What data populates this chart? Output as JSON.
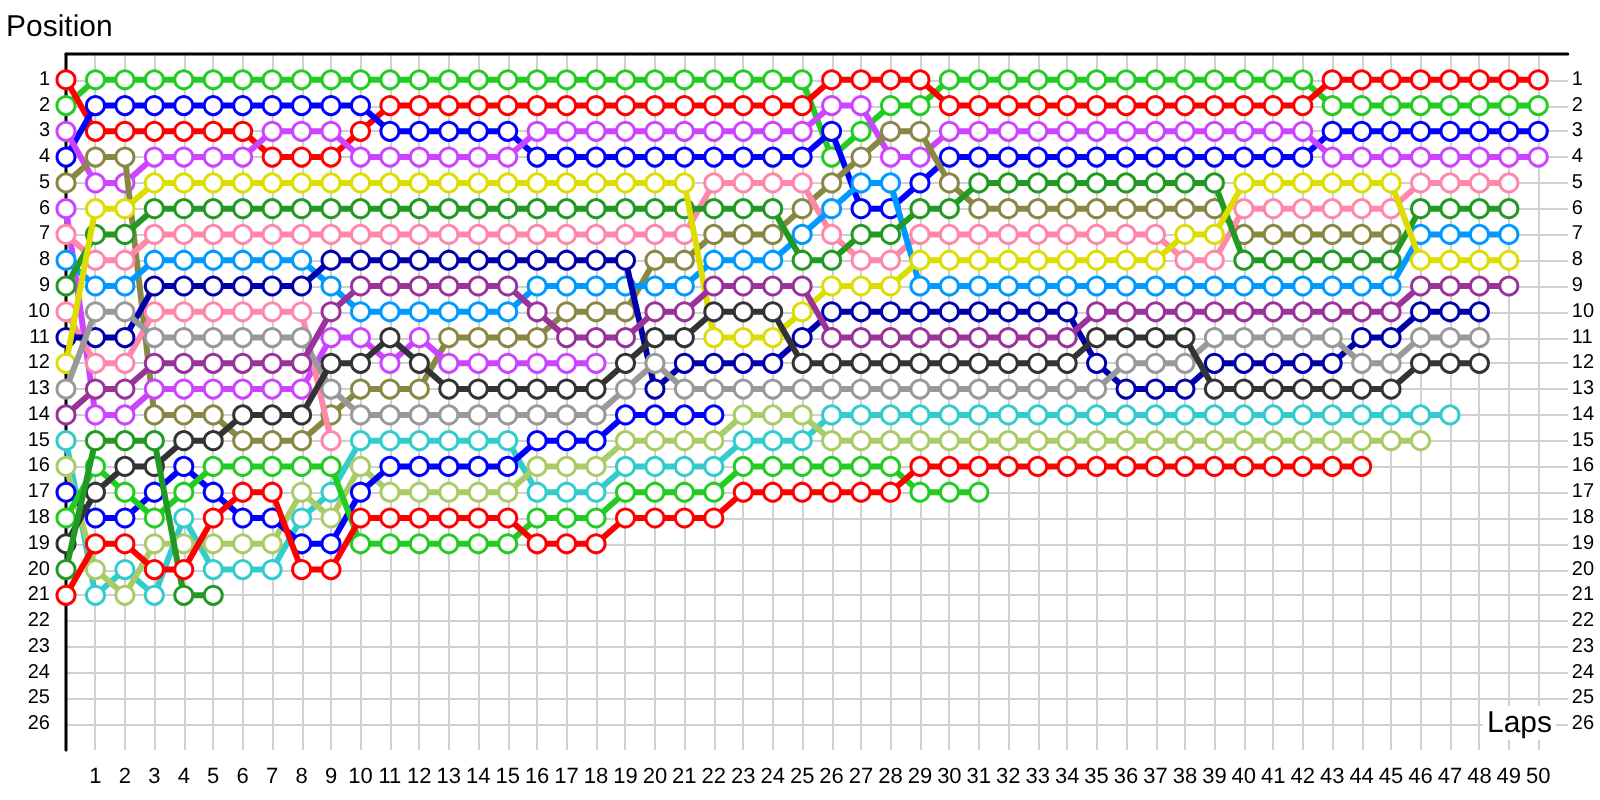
{
  "chart_data": {
    "type": "line",
    "xlabel": "Laps",
    "ylabel": "Position",
    "x": [
      0,
      1,
      2,
      3,
      4,
      5,
      6,
      7,
      8,
      9,
      10,
      11,
      12,
      13,
      14,
      15,
      16,
      17,
      18,
      19,
      20,
      21,
      22,
      23,
      24,
      25,
      26,
      27,
      28,
      29,
      30,
      31,
      32,
      33,
      34,
      35,
      36,
      37,
      38,
      39,
      40,
      41,
      42,
      43,
      44,
      45,
      46,
      47,
      48,
      49,
      50
    ],
    "xlim": [
      0,
      51
    ],
    "xticks": [
      1,
      2,
      3,
      4,
      5,
      6,
      7,
      8,
      9,
      10,
      11,
      12,
      13,
      14,
      15,
      16,
      17,
      18,
      19,
      20,
      21,
      22,
      23,
      24,
      25,
      26,
      27,
      28,
      29,
      30,
      31,
      32,
      33,
      34,
      35,
      36,
      37,
      38,
      39,
      40,
      41,
      42,
      43,
      44,
      45,
      46,
      47,
      48,
      49,
      50
    ],
    "ylim": [
      27,
      0
    ],
    "yticks": [
      1,
      2,
      3,
      4,
      5,
      6,
      7,
      8,
      9,
      10,
      11,
      12,
      13,
      14,
      15,
      16,
      17,
      18,
      19,
      20,
      21,
      22,
      23,
      24,
      25,
      26
    ],
    "y2lim": [
      27,
      0
    ],
    "y2ticks": [
      1,
      2,
      3,
      4,
      5,
      6,
      7,
      8,
      9,
      10,
      11,
      12,
      13,
      14,
      15,
      16,
      17,
      18,
      19,
      20,
      21,
      22,
      23,
      24,
      25,
      26
    ],
    "grid": true,
    "marker": "circle",
    "line_style": "solid",
    "series": [
      {
        "color": "#22cc22",
        "values": [
          2,
          1,
          1,
          1,
          1,
          1,
          1,
          1,
          1,
          1,
          1,
          1,
          1,
          1,
          1,
          1,
          1,
          1,
          1,
          1,
          1,
          1,
          1,
          1,
          1,
          1,
          4,
          3,
          2,
          2,
          1,
          1,
          1,
          1,
          1,
          1,
          1,
          1,
          1,
          1,
          1,
          1,
          1,
          2,
          2,
          2,
          2,
          2,
          2,
          2,
          2
        ]
      },
      {
        "color": "#ff0000",
        "values": [
          1,
          3,
          3,
          3,
          3,
          3,
          3,
          4,
          4,
          4,
          3,
          2,
          2,
          2,
          2,
          2,
          2,
          2,
          2,
          2,
          2,
          2,
          2,
          2,
          2,
          2,
          1,
          1,
          1,
          1,
          2,
          2,
          2,
          2,
          2,
          2,
          2,
          2,
          2,
          2,
          2,
          2,
          2,
          1,
          1,
          1,
          1,
          1,
          1,
          1,
          1
        ]
      },
      {
        "color": "#0000ff",
        "values": [
          4,
          2,
          2,
          2,
          2,
          2,
          2,
          2,
          2,
          2,
          2,
          3,
          3,
          3,
          3,
          3,
          4,
          4,
          4,
          4,
          4,
          4,
          4,
          4,
          4,
          4,
          3,
          6,
          6,
          5,
          4,
          4,
          4,
          4,
          4,
          4,
          4,
          4,
          4,
          4,
          4,
          4,
          4,
          3,
          3,
          3,
          3,
          3,
          3,
          3,
          3
        ]
      },
      {
        "color": "#cc44ff",
        "values": [
          3,
          5,
          5,
          4,
          4,
          4,
          4,
          3,
          3,
          3,
          4,
          4,
          4,
          4,
          4,
          4,
          3,
          3,
          3,
          3,
          3,
          3,
          3,
          3,
          3,
          3,
          2,
          2,
          4,
          4,
          3,
          3,
          3,
          3,
          3,
          3,
          3,
          3,
          3,
          3,
          3,
          3,
          3,
          4,
          4,
          4,
          4,
          4,
          4,
          4,
          4
        ]
      },
      {
        "color": "#888844",
        "values": [
          5,
          4,
          4,
          14,
          14,
          14,
          15,
          15,
          15,
          14,
          13,
          13,
          13,
          11,
          11,
          11,
          11,
          10,
          10,
          10,
          8,
          8,
          7,
          7,
          7,
          6,
          5,
          4,
          3,
          3,
          5,
          6,
          6,
          6,
          6,
          6,
          6,
          6,
          6,
          6,
          7,
          7,
          7,
          7,
          7,
          7,
          null,
          null,
          null,
          null,
          null
        ]
      },
      {
        "color": "#cc44ff",
        "values": [
          6,
          14,
          14,
          13,
          13,
          13,
          13,
          13,
          13,
          11,
          11,
          12,
          11,
          12,
          12,
          12,
          12,
          12,
          12,
          null,
          null,
          null,
          null,
          null,
          null,
          null,
          null,
          null,
          null,
          null,
          null,
          null,
          null,
          null,
          null,
          null,
          null,
          null,
          null,
          null,
          null,
          null,
          null,
          null,
          null,
          null,
          null,
          null,
          null,
          null,
          null
        ]
      },
      {
        "color": "#ff88aa",
        "values": [
          7,
          8,
          8,
          7,
          7,
          7,
          7,
          7,
          7,
          7,
          7,
          7,
          7,
          7,
          7,
          7,
          7,
          7,
          7,
          7,
          7,
          7,
          5,
          5,
          5,
          5,
          7,
          8,
          8,
          7,
          7,
          7,
          7,
          7,
          7,
          7,
          7,
          7,
          8,
          8,
          6,
          6,
          6,
          6,
          6,
          6,
          5,
          5,
          5,
          5,
          null
        ]
      },
      {
        "color": "#0099ff",
        "values": [
          8,
          9,
          9,
          8,
          8,
          8,
          8,
          8,
          8,
          9,
          10,
          10,
          10,
          10,
          10,
          10,
          9,
          9,
          9,
          9,
          9,
          9,
          8,
          8,
          8,
          7,
          6,
          5,
          5,
          9,
          9,
          9,
          9,
          9,
          9,
          9,
          9,
          9,
          9,
          9,
          9,
          9,
          9,
          9,
          9,
          9,
          7,
          7,
          7,
          7,
          null
        ]
      },
      {
        "color": "#229922",
        "values": [
          9,
          7,
          7,
          6,
          6,
          6,
          6,
          6,
          6,
          6,
          6,
          6,
          6,
          6,
          6,
          6,
          6,
          6,
          6,
          6,
          6,
          6,
          6,
          6,
          6,
          8,
          8,
          7,
          7,
          6,
          6,
          5,
          5,
          5,
          5,
          5,
          5,
          5,
          5,
          5,
          8,
          8,
          8,
          8,
          8,
          8,
          6,
          6,
          6,
          6,
          null
        ]
      },
      {
        "color": "#ff88aa",
        "values": [
          10,
          12,
          12,
          10,
          10,
          10,
          10,
          10,
          10,
          15,
          null,
          null,
          null,
          null,
          null,
          null,
          null,
          null,
          null,
          null,
          null,
          null,
          null,
          null,
          null,
          null,
          null,
          null,
          null,
          null,
          null,
          null,
          null,
          null,
          null,
          null,
          null,
          null,
          null,
          null,
          null,
          null,
          null,
          null,
          null,
          null,
          null,
          null,
          null,
          null,
          null
        ]
      },
      {
        "color": "#0000aa",
        "values": [
          11,
          11,
          11,
          9,
          9,
          9,
          9,
          9,
          9,
          8,
          8,
          8,
          8,
          8,
          8,
          8,
          8,
          8,
          8,
          8,
          13,
          12,
          12,
          12,
          12,
          11,
          10,
          10,
          10,
          10,
          10,
          10,
          10,
          10,
          10,
          12,
          13,
          13,
          13,
          12,
          12,
          12,
          12,
          12,
          11,
          11,
          10,
          10,
          10,
          null,
          null
        ]
      },
      {
        "color": "#dddd00",
        "values": [
          12,
          6,
          6,
          5,
          5,
          5,
          5,
          5,
          5,
          5,
          5,
          5,
          5,
          5,
          5,
          5,
          5,
          5,
          5,
          5,
          5,
          5,
          11,
          11,
          11,
          10,
          9,
          9,
          9,
          8,
          8,
          8,
          8,
          8,
          8,
          8,
          8,
          8,
          7,
          7,
          5,
          5,
          5,
          5,
          5,
          5,
          8,
          8,
          8,
          8,
          null
        ]
      },
      {
        "color": "#999999",
        "values": [
          13,
          10,
          10,
          11,
          11,
          11,
          11,
          11,
          11,
          13,
          14,
          14,
          14,
          14,
          14,
          14,
          14,
          14,
          14,
          13,
          12,
          13,
          13,
          13,
          13,
          13,
          13,
          13,
          13,
          13,
          13,
          13,
          13,
          13,
          13,
          13,
          12,
          12,
          12,
          11,
          11,
          11,
          11,
          11,
          12,
          12,
          11,
          11,
          11,
          null,
          null
        ]
      },
      {
        "color": "#993399",
        "values": [
          14,
          13,
          13,
          12,
          12,
          12,
          12,
          12,
          12,
          10,
          9,
          9,
          9,
          9,
          9,
          9,
          10,
          11,
          11,
          11,
          10,
          10,
          9,
          9,
          9,
          9,
          11,
          11,
          11,
          11,
          11,
          11,
          11,
          11,
          11,
          10,
          10,
          10,
          10,
          10,
          10,
          10,
          10,
          10,
          10,
          10,
          9,
          9,
          9,
          9,
          null
        ]
      },
      {
        "color": "#33cccc",
        "values": [
          15,
          21,
          20,
          21,
          18,
          20,
          20,
          20,
          18,
          17,
          15,
          15,
          15,
          15,
          15,
          15,
          17,
          17,
          17,
          16,
          16,
          16,
          16,
          15,
          15,
          15,
          14,
          14,
          14,
          14,
          14,
          14,
          14,
          14,
          14,
          14,
          14,
          14,
          14,
          14,
          14,
          14,
          14,
          14,
          14,
          14,
          14,
          14,
          null,
          null,
          null
        ]
      },
      {
        "color": "#aacc66",
        "values": [
          16,
          20,
          21,
          19,
          19,
          19,
          19,
          19,
          17,
          18,
          16,
          17,
          17,
          17,
          17,
          17,
          16,
          16,
          16,
          15,
          15,
          15,
          15,
          14,
          14,
          14,
          15,
          15,
          15,
          15,
          15,
          15,
          15,
          15,
          15,
          15,
          15,
          15,
          15,
          15,
          15,
          15,
          15,
          15,
          15,
          15,
          15,
          null,
          null,
          null,
          null
        ]
      },
      {
        "color": "#0000ff",
        "values": [
          17,
          18,
          18,
          17,
          16,
          17,
          18,
          18,
          19,
          19,
          17,
          16,
          16,
          16,
          16,
          16,
          15,
          15,
          15,
          14,
          14,
          14,
          14,
          null,
          null,
          null,
          null,
          null,
          null,
          null,
          null,
          null,
          null,
          null,
          null,
          null,
          null,
          null,
          null,
          null,
          null,
          null,
          null,
          null,
          null,
          null,
          null,
          null,
          null,
          null,
          null
        ]
      },
      {
        "color": "#22cc22",
        "values": [
          18,
          16,
          17,
          18,
          17,
          16,
          16,
          16,
          16,
          16,
          19,
          19,
          19,
          19,
          19,
          19,
          18,
          18,
          18,
          17,
          17,
          17,
          17,
          16,
          16,
          16,
          16,
          16,
          16,
          17,
          17,
          17,
          null,
          null,
          null,
          null,
          null,
          null,
          null,
          null,
          null,
          null,
          null,
          null,
          null,
          null,
          null,
          null,
          null,
          null,
          null
        ]
      },
      {
        "color": "#333333",
        "values": [
          19,
          17,
          16,
          16,
          15,
          15,
          14,
          14,
          14,
          12,
          12,
          11,
          12,
          13,
          13,
          13,
          13,
          13,
          13,
          12,
          11,
          11,
          10,
          10,
          10,
          12,
          12,
          12,
          12,
          12,
          12,
          12,
          12,
          12,
          12,
          11,
          11,
          11,
          11,
          13,
          13,
          13,
          13,
          13,
          13,
          13,
          12,
          12,
          12,
          null,
          null
        ]
      },
      {
        "color": "#229922",
        "values": [
          20,
          15,
          15,
          15,
          21,
          21,
          null,
          null,
          null,
          null,
          null,
          null,
          null,
          null,
          null,
          null,
          null,
          null,
          null,
          null,
          null,
          null,
          null,
          null,
          null,
          null,
          null,
          null,
          null,
          null,
          null,
          null,
          null,
          null,
          null,
          null,
          null,
          null,
          null,
          null,
          null,
          null,
          null,
          null,
          null,
          null,
          null,
          null,
          null,
          null,
          null
        ]
      },
      {
        "color": "#ff0000",
        "values": [
          21,
          19,
          19,
          20,
          20,
          18,
          17,
          17,
          20,
          20,
          18,
          18,
          18,
          18,
          18,
          18,
          19,
          19,
          19,
          18,
          18,
          18,
          18,
          17,
          17,
          17,
          17,
          17,
          17,
          16,
          16,
          16,
          16,
          16,
          16,
          16,
          16,
          16,
          16,
          16,
          16,
          16,
          16,
          16,
          16,
          null,
          null,
          null,
          null,
          null,
          null
        ]
      }
    ]
  }
}
